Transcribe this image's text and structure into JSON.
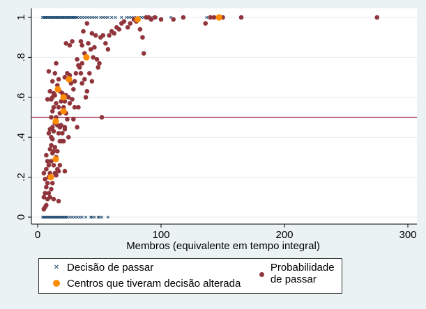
{
  "chart_data": {
    "type": "scatter",
    "xlabel": "Membros (equivalente em tempo integral)",
    "ylabel": "",
    "xlim": [
      0,
      300
    ],
    "ylim": [
      0,
      1
    ],
    "x_ticks": [
      "0",
      "100",
      "200",
      "300"
    ],
    "y_ticks": [
      "0",
      ".2",
      ".4",
      ".6",
      ".8",
      "1"
    ],
    "grid": true,
    "reference_line_y": 0.5,
    "legend_position": "bottom",
    "colors": {
      "decision": "#1a476f",
      "probability": "#90353b",
      "changed": "#ff8c00",
      "refline": "#a0304a",
      "background": "#eaf2f3"
    },
    "series": [
      {
        "name": "Decisão de passar",
        "marker": "x",
        "points": [
          [
            4,
            1
          ],
          [
            5,
            1
          ],
          [
            6,
            1
          ],
          [
            7,
            1
          ],
          [
            8,
            1
          ],
          [
            9,
            1
          ],
          [
            10,
            1
          ],
          [
            11,
            1
          ],
          [
            12,
            1
          ],
          [
            13,
            1
          ],
          [
            14,
            1
          ],
          [
            15,
            1
          ],
          [
            16,
            1
          ],
          [
            17,
            1
          ],
          [
            18,
            1
          ],
          [
            19,
            1
          ],
          [
            20,
            1
          ],
          [
            21,
            1
          ],
          [
            22,
            1
          ],
          [
            23,
            1
          ],
          [
            24,
            1
          ],
          [
            25,
            1
          ],
          [
            26,
            1
          ],
          [
            27,
            1
          ],
          [
            28,
            1
          ],
          [
            29,
            1
          ],
          [
            30,
            1
          ],
          [
            31,
            1
          ],
          [
            32,
            1
          ],
          [
            34,
            1
          ],
          [
            36,
            1
          ],
          [
            38,
            1
          ],
          [
            40,
            1
          ],
          [
            42,
            1
          ],
          [
            44,
            1
          ],
          [
            46,
            1
          ],
          [
            48,
            1
          ],
          [
            51,
            1
          ],
          [
            53,
            1
          ],
          [
            55,
            1
          ],
          [
            57,
            1
          ],
          [
            60,
            1
          ],
          [
            63,
            1
          ],
          [
            68,
            1
          ],
          [
            72,
            1
          ],
          [
            74,
            1
          ],
          [
            76,
            1
          ],
          [
            78,
            1
          ],
          [
            80,
            1
          ],
          [
            82,
            1
          ],
          [
            84,
            1
          ],
          [
            86,
            1
          ],
          [
            88,
            1
          ],
          [
            92,
            1
          ],
          [
            96,
            1
          ],
          [
            108,
            1
          ],
          [
            137,
            1
          ],
          [
            145,
            1
          ],
          [
            4,
            0
          ],
          [
            5,
            0
          ],
          [
            6,
            0
          ],
          [
            7,
            0
          ],
          [
            8,
            0
          ],
          [
            9,
            0
          ],
          [
            10,
            0
          ],
          [
            11,
            0
          ],
          [
            12,
            0
          ],
          [
            13,
            0
          ],
          [
            14,
            0
          ],
          [
            15,
            0
          ],
          [
            16,
            0
          ],
          [
            17,
            0
          ],
          [
            18,
            0
          ],
          [
            19,
            0
          ],
          [
            20,
            0
          ],
          [
            21,
            0
          ],
          [
            22,
            0
          ],
          [
            23,
            0
          ],
          [
            24,
            0
          ],
          [
            26,
            0
          ],
          [
            28,
            0
          ],
          [
            30,
            0
          ],
          [
            32,
            0
          ],
          [
            34,
            0
          ],
          [
            36,
            0
          ],
          [
            39,
            0
          ],
          [
            43,
            0
          ],
          [
            44,
            0
          ],
          [
            46,
            0
          ],
          [
            49,
            0
          ],
          [
            50,
            0
          ],
          [
            52,
            0
          ],
          [
            57,
            0
          ]
        ]
      },
      {
        "name": "Probabilidade de passar",
        "marker": "circle",
        "points": [
          [
            5,
            0.04
          ],
          [
            6,
            0.05
          ],
          [
            7,
            0.06
          ],
          [
            8,
            0.09
          ],
          [
            5,
            0.1
          ],
          [
            6,
            0.12
          ],
          [
            7,
            0.15
          ],
          [
            9,
            0.12
          ],
          [
            10,
            0.1
          ],
          [
            8,
            0.17
          ],
          [
            5,
            0.22
          ],
          [
            6,
            0.19
          ],
          [
            7,
            0.24
          ],
          [
            9,
            0.2
          ],
          [
            11,
            0.14
          ],
          [
            12,
            0.17
          ],
          [
            10,
            0.22
          ],
          [
            8,
            0.28
          ],
          [
            7,
            0.31
          ],
          [
            9,
            0.26
          ],
          [
            11,
            0.28
          ],
          [
            12,
            0.32
          ],
          [
            13,
            0.26
          ],
          [
            14,
            0.22
          ],
          [
            15,
            0.21
          ],
          [
            16,
            0.24
          ],
          [
            17,
            0.23
          ],
          [
            18,
            0.26
          ],
          [
            10,
            0.34
          ],
          [
            11,
            0.36
          ],
          [
            12,
            0.39
          ],
          [
            13,
            0.33
          ],
          [
            14,
            0.35
          ],
          [
            15,
            0.3
          ],
          [
            16,
            0.33
          ],
          [
            17,
            0.42
          ],
          [
            18,
            0.38
          ],
          [
            9,
            0.42
          ],
          [
            10,
            0.44
          ],
          [
            11,
            0.4
          ],
          [
            12,
            0.45
          ],
          [
            13,
            0.43
          ],
          [
            14,
            0.47
          ],
          [
            15,
            0.5
          ],
          [
            16,
            0.46
          ],
          [
            18,
            0.45
          ],
          [
            20,
            0.38
          ],
          [
            21,
            0.38
          ],
          [
            22,
            0.45
          ],
          [
            22,
            0.44
          ],
          [
            20,
            0.42
          ],
          [
            19,
            0.46
          ],
          [
            11,
            0.5
          ],
          [
            12,
            0.53
          ],
          [
            13,
            0.55
          ],
          [
            15,
            0.57
          ],
          [
            17,
            0.55
          ],
          [
            18,
            0.52
          ],
          [
            19,
            0.58
          ],
          [
            21,
            0.55
          ],
          [
            23,
            0.52
          ],
          [
            24,
            0.49
          ],
          [
            11,
            0.59
          ],
          [
            12,
            0.6
          ],
          [
            13,
            0.62
          ],
          [
            14,
            0.61
          ],
          [
            16,
            0.66
          ],
          [
            17,
            0.69
          ],
          [
            18,
            0.63
          ],
          [
            20,
            0.62
          ],
          [
            22,
            0.58
          ],
          [
            23,
            0.61
          ],
          [
            25,
            0.6
          ],
          [
            26,
            0.57
          ],
          [
            28,
            0.59
          ],
          [
            30,
            0.55
          ],
          [
            29,
            0.49
          ],
          [
            33,
            0.55
          ],
          [
            32,
            0.45
          ],
          [
            8,
            0.59
          ],
          [
            10,
            0.63
          ],
          [
            12,
            0.68
          ],
          [
            14,
            0.72
          ],
          [
            15,
            0.77
          ],
          [
            9,
            0.73
          ],
          [
            22,
            0.7
          ],
          [
            24,
            0.72
          ],
          [
            26,
            0.71
          ],
          [
            27,
            0.67
          ],
          [
            29,
            0.64
          ],
          [
            30,
            0.68
          ],
          [
            31,
            0.72
          ],
          [
            33,
            0.76
          ],
          [
            35,
            0.72
          ],
          [
            36,
            0.67
          ],
          [
            38,
            0.69
          ],
          [
            40,
            0.63
          ],
          [
            39,
            0.6
          ],
          [
            32,
            0.79
          ],
          [
            34,
            0.75
          ],
          [
            36,
            0.77
          ],
          [
            38,
            0.82
          ],
          [
            42,
            0.72
          ],
          [
            44,
            0.68
          ],
          [
            41,
            0.87
          ],
          [
            43,
            0.84
          ],
          [
            45,
            0.8
          ],
          [
            46,
            0.85
          ],
          [
            48,
            0.79
          ],
          [
            49,
            0.75
          ],
          [
            50,
            0.77
          ],
          [
            51,
            0.9
          ],
          [
            53,
            0.91
          ],
          [
            55,
            0.87
          ],
          [
            57,
            0.84
          ],
          [
            58,
            0.91
          ],
          [
            60,
            0.93
          ],
          [
            62,
            0.92
          ],
          [
            64,
            0.95
          ],
          [
            66,
            0.94
          ],
          [
            68,
            0.97
          ],
          [
            70,
            0.98
          ],
          [
            73,
            0.95
          ],
          [
            75,
            0.97
          ],
          [
            78,
            0.99
          ],
          [
            80,
            0.98
          ],
          [
            83,
            0.94
          ],
          [
            85,
            0.9
          ],
          [
            86,
            0.82
          ],
          [
            88,
            1
          ],
          [
            90,
            1
          ],
          [
            92,
            0.99
          ],
          [
            95,
            1
          ],
          [
            100,
            0.99
          ],
          [
            110,
            0.99
          ],
          [
            118,
            1
          ],
          [
            136,
            0.97
          ],
          [
            140,
            1
          ],
          [
            143,
            1
          ],
          [
            150,
            1
          ],
          [
            165,
            1
          ],
          [
            275,
            1
          ],
          [
            23,
            0.87
          ],
          [
            26,
            0.86
          ],
          [
            28,
            0.88
          ],
          [
            35,
            0.88
          ],
          [
            37,
            0.93
          ],
          [
            40,
            0.97
          ],
          [
            44,
            0.92
          ],
          [
            47,
            0.91
          ],
          [
            36,
            0.86
          ],
          [
            52,
            0.5
          ],
          [
            25,
            0.4
          ],
          [
            22,
            0.23
          ],
          [
            13,
            0.09
          ],
          [
            17,
            0.08
          ]
        ]
      },
      {
        "name": "Centros que tiveram decisão alterada",
        "marker": "circle-large",
        "points": [
          [
            10.7,
            0.2
          ],
          [
            14.7,
            0.29
          ],
          [
            14.7,
            0.48
          ],
          [
            16.4,
            0.64
          ],
          [
            21,
            0.6
          ],
          [
            21,
            0.53
          ],
          [
            25.4,
            0.69
          ],
          [
            39.5,
            0.8
          ],
          [
            81,
            0.99
          ],
          [
            147,
            1
          ]
        ]
      }
    ]
  }
}
